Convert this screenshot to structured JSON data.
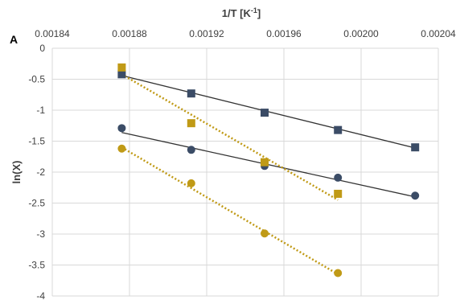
{
  "chart_data": {
    "type": "scatter",
    "panel_label": "A",
    "xlabel": "1/T [K",
    "xlabel_sup": "-1",
    "xlabel_end": "]",
    "ylabel": "ln(X)",
    "xlim": [
      0.00184,
      0.00204
    ],
    "ylim": [
      -4,
      0
    ],
    "x_ticks": [
      "0.00184",
      "0.00188",
      "0.00192",
      "0.00196",
      "0.00200",
      "0.00204"
    ],
    "y_ticks": [
      "0",
      "-0.5",
      "-1",
      "-1.5",
      "-2",
      "-2.5",
      "-3",
      "-3.5",
      "-4"
    ],
    "x_axis_position": "top",
    "grid": true,
    "series": [
      {
        "marker": "square",
        "color": "#3B4C66",
        "trendline": "solid",
        "trendline_color": "#333333",
        "points": [
          [
            0.001876,
            -0.42
          ],
          [
            0.001912,
            -0.73
          ],
          [
            0.00195,
            -1.04
          ],
          [
            0.001988,
            -1.32
          ],
          [
            0.002028,
            -1.6
          ]
        ],
        "trend": [
          [
            0.001876,
            -0.44
          ],
          [
            0.002028,
            -1.61
          ]
        ]
      },
      {
        "marker": "circle",
        "color": "#3B4C66",
        "trendline": "solid",
        "trendline_color": "#333333",
        "points": [
          [
            0.001876,
            -1.29
          ],
          [
            0.001912,
            -1.64
          ],
          [
            0.00195,
            -1.9
          ],
          [
            0.001988,
            -2.09
          ],
          [
            0.002028,
            -2.38
          ]
        ],
        "trend": [
          [
            0.001876,
            -1.36
          ],
          [
            0.002028,
            -2.4
          ]
        ]
      },
      {
        "marker": "square",
        "color": "#C09A16",
        "trendline": "dotted",
        "trendline_color": "#C09A16",
        "points": [
          [
            0.001876,
            -0.31
          ],
          [
            0.001912,
            -1.21
          ],
          [
            0.00195,
            -1.84
          ],
          [
            0.001988,
            -2.35
          ]
        ],
        "trend": [
          [
            0.001876,
            -0.42
          ],
          [
            0.001988,
            -2.45
          ]
        ]
      },
      {
        "marker": "circle",
        "color": "#C09A16",
        "trendline": "dotted",
        "trendline_color": "#C09A16",
        "points": [
          [
            0.001876,
            -1.62
          ],
          [
            0.001912,
            -2.18
          ],
          [
            0.00195,
            -2.99
          ],
          [
            0.001988,
            -3.63
          ]
        ],
        "trend": [
          [
            0.001876,
            -1.6
          ],
          [
            0.001988,
            -3.65
          ]
        ]
      }
    ]
  }
}
